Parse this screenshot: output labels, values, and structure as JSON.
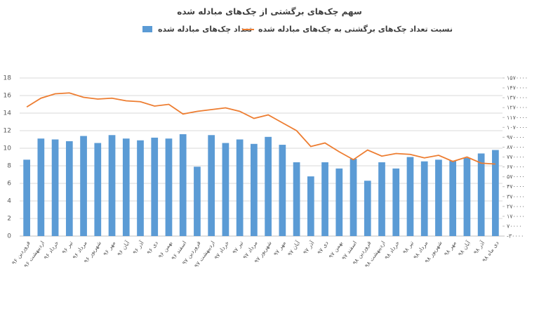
{
  "chart_data": {
    "type": "bar+line",
    "title": "سهم چک‌های برگشتی از چک‌های مبادله شده",
    "categories": [
      "فروردین ۹۶",
      "اردیبهشت ۹۶",
      "خرداد ۹۶",
      "تیر ۹۶",
      "مرداد ۹۶",
      "شهریور ۹۶",
      "مهر ۹۶",
      "آبان ۹۶",
      "آذر ۹۶",
      "دی ۹۶",
      "بهمن ۹۶",
      "اسفند ۹۶",
      "فروردین ۹۷",
      "اردیبهشت ۹۷",
      "خرداد ۹۷",
      "تیر ۹۷",
      "مرداد ۹۷",
      "شهریور ۹۷",
      "مهر ۹۷",
      "آبان ۹۷",
      "آذر ۹۷",
      "دی ۹۷",
      "بهمن ۹۷",
      "اسفند ۹۷",
      "فروردین ۹۸",
      "اردیبهشت ۹۸",
      "خرداد ۹۸",
      "تیر ۹۸",
      "مرداد ۹۸",
      "شهریور ۹۸",
      "مهر ۹۸",
      "آبان ۹۸",
      "آذر ۹۸",
      "دی ماه ۹۸"
    ],
    "series": [
      {
        "name": "تعداد چک‌های مبادله شده",
        "type": "bar",
        "axis": "y2",
        "color": "#5b9bd5",
        "values": [
          743000,
          957000,
          948000,
          930000,
          983000,
          912000,
          992000,
          957000,
          939000,
          966000,
          957000,
          1001000,
          672000,
          992000,
          912000,
          948000,
          903000,
          974000,
          894000,
          717000,
          574000,
          717000,
          654000,
          752000,
          530000,
          717000,
          654000,
          770000,
          726000,
          743000,
          734000,
          761000,
          806000,
          841000
        ]
      },
      {
        "name": "نسبت تعداد چک‌های برگشتی به چک‌های مبادله شده",
        "type": "line",
        "color": "#ed7d31",
        "values": [
          14.7,
          15.7,
          16.2,
          16.3,
          15.8,
          15.6,
          15.7,
          15.4,
          15.3,
          14.8,
          15.0,
          13.9,
          14.2,
          14.4,
          14.6,
          14.2,
          13.4,
          13.8,
          12.9,
          12.0,
          10.2,
          10.6,
          9.6,
          8.7,
          9.8,
          9.1,
          9.4,
          9.3,
          8.9,
          9.2,
          8.5,
          9.0,
          8.3,
          8.2
        ]
      }
    ],
    "ylim": [
      0,
      18
    ],
    "yticks": [
      0,
      2,
      4,
      6,
      8,
      10,
      12,
      14,
      16,
      18
    ],
    "y2lim": [
      -30000,
      1570000
    ],
    "y2ticks": [
      {
        "value": -30000,
        "label": "-۳۰۰۰۰"
      },
      {
        "value": 70000,
        "label": "۷۰۰۰۰"
      },
      {
        "value": 170000,
        "label": "۱۷۰۰۰۰"
      },
      {
        "value": 270000,
        "label": "۲۷۰۰۰۰"
      },
      {
        "value": 370000,
        "label": "۳۷۰۰۰۰"
      },
      {
        "value": 470000,
        "label": "۴۷۰۰۰۰"
      },
      {
        "value": 570000,
        "label": "۵۷۰۰۰۰"
      },
      {
        "value": 670000,
        "label": "۶۷۰۰۰۰"
      },
      {
        "value": 770000,
        "label": "۷۷۰۰۰۰"
      },
      {
        "value": 870000,
        "label": "۸۷۰۰۰۰"
      },
      {
        "value": 970000,
        "label": "۹۷۰۰۰۰"
      },
      {
        "value": 1070000,
        "label": "۱۰۷۰۰۰۰"
      },
      {
        "value": 1170000,
        "label": "۱۱۷۰۰۰۰"
      },
      {
        "value": 1270000,
        "label": "۱۲۷۰۰۰۰"
      },
      {
        "value": 1370000,
        "label": "۱۳۷۰۰۰۰"
      },
      {
        "value": 1470000,
        "label": "۱۴۷۰۰۰۰"
      },
      {
        "value": 1570000,
        "label": "۱۵۷۰۰۰۰"
      }
    ],
    "grid": true
  }
}
